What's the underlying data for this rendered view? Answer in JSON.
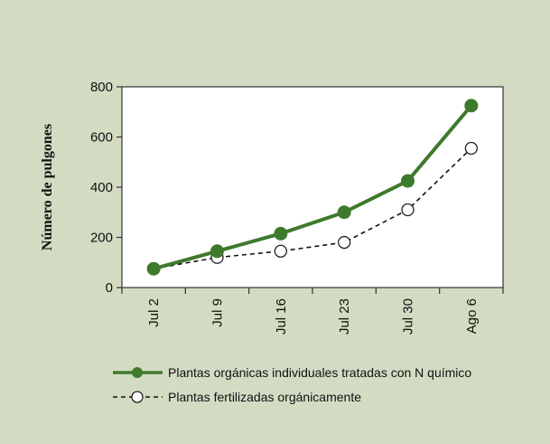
{
  "chart_data": {
    "type": "line",
    "categories": [
      "Jul 2",
      "Jul 9",
      "Jul 16",
      "Jul 23",
      "Jul 30",
      "Ago 6"
    ],
    "ylabel": "Número de pulgones",
    "xlabel": "",
    "title": "",
    "ylim": [
      0,
      800
    ],
    "yticks": [
      0,
      200,
      400,
      600,
      800
    ],
    "grid": false,
    "legend_position": "bottom",
    "series": [
      {
        "name": "Plantas orgánicas individuales tratadas con N químico",
        "values": [
          75,
          145,
          215,
          300,
          425,
          725
        ],
        "color": "#3e7a2c",
        "marker": "filled-circle",
        "line_style": "solid"
      },
      {
        "name": "Plantas fertilizadas orgánicamente",
        "values": [
          75,
          120,
          145,
          180,
          310,
          555
        ],
        "color": "#111111",
        "marker": "open-circle",
        "line_style": "dashed"
      }
    ]
  }
}
